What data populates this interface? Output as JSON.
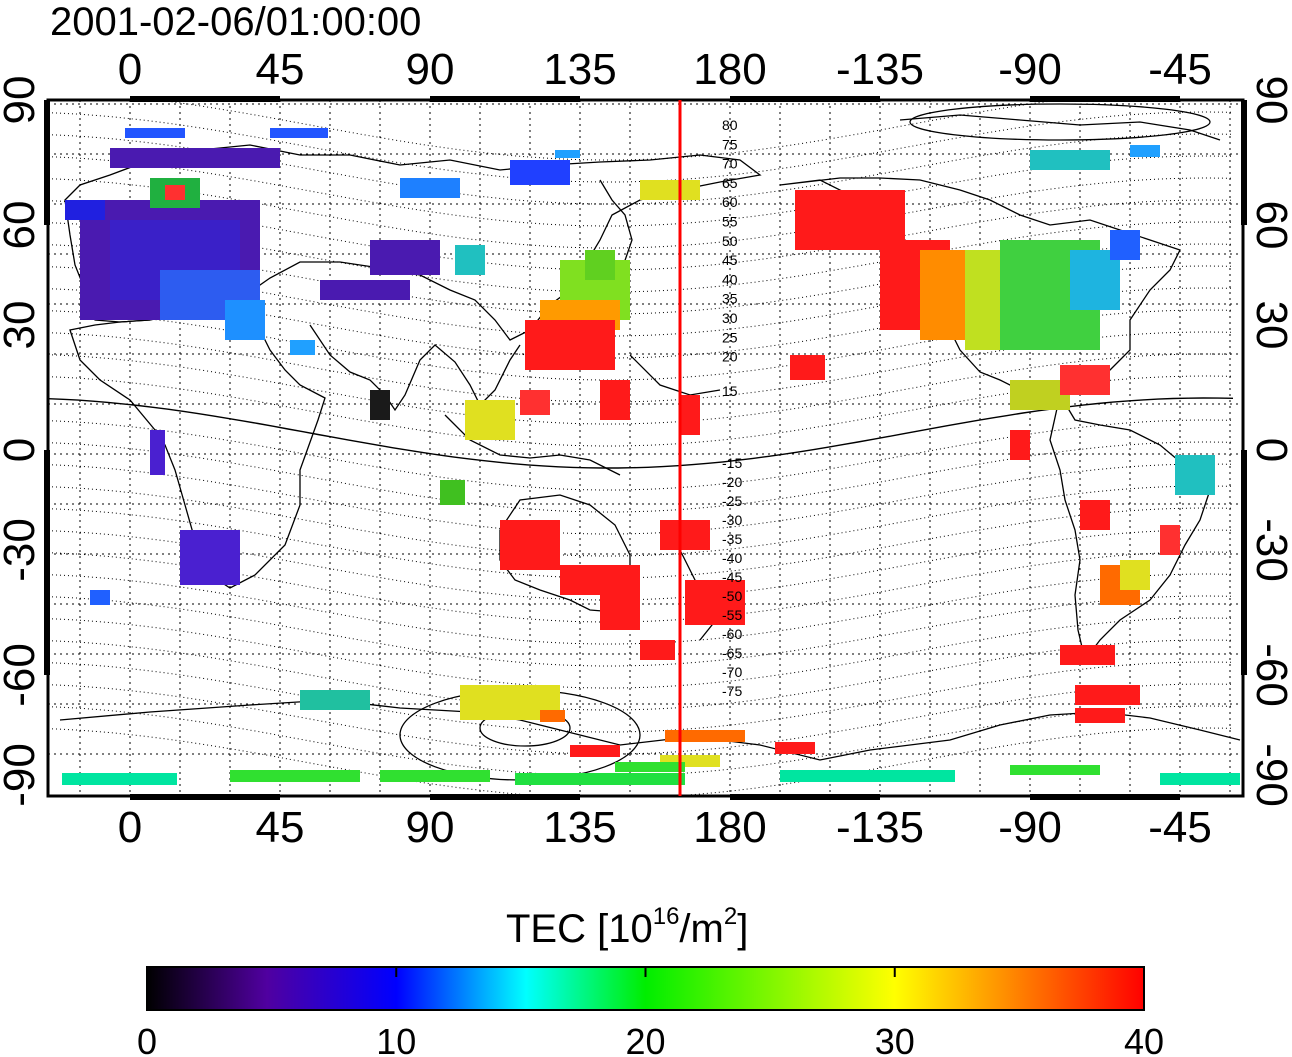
{
  "title": "2001-02-06/01:00:00",
  "map": {
    "lon_ticks": [
      "0",
      "45",
      "90",
      "135",
      "180",
      "-135",
      "-90",
      "-45"
    ],
    "lat_ticks": [
      "90",
      "60",
      "30",
      "0",
      "-30",
      "-60",
      "-90"
    ],
    "contour_labels": [
      "80",
      "75",
      "70",
      "65",
      "60",
      "55",
      "50",
      "45",
      "40",
      "35",
      "30",
      "25",
      "20",
      "15",
      "-15",
      "-20",
      "-25",
      "-30",
      "-35",
      "-40",
      "-45",
      "-50",
      "-55",
      "-60",
      "-65",
      "-70",
      "-75"
    ],
    "meridian_line_color": "#ff0000"
  },
  "colorbar": {
    "label_main": "TEC  [10",
    "label_exp1": "16",
    "label_mid": "/m",
    "label_exp2": "2",
    "label_end": "]",
    "ticks": [
      "0",
      "10",
      "20",
      "30",
      "40"
    ],
    "colors": [
      "#000000",
      "#5a00b4",
      "#0000ff",
      "#00ffff",
      "#00ff00",
      "#ffff00",
      "#ff0000"
    ]
  }
}
